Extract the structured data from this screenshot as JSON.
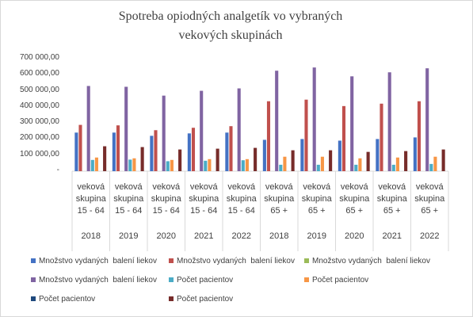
{
  "chart_data": {
    "type": "bar",
    "title": "Spotreba opiodných analgetík vo vybraných vekových skupinách",
    "category_groups": [
      "veková skupina 15 - 64",
      "veková skupina 15 - 64",
      "veková skupina 15 - 64",
      "veková skupina 15 - 64",
      "veková skupina 15 - 64",
      "veková skupina 65 +",
      "veková skupina 65 +",
      "veková skupina 65 +",
      "veková skupina 65 +",
      "veková skupina 65 +"
    ],
    "categories": [
      "2018",
      "2019",
      "2020",
      "2021",
      "2022",
      "2018",
      "2019",
      "2020",
      "2021",
      "2022"
    ],
    "series": [
      {
        "name": "Množstvo vydaných  balení liekov",
        "color": "#4472c4",
        "values": [
          240000,
          240000,
          220000,
          235000,
          240000,
          195000,
          200000,
          190000,
          200000,
          210000
        ]
      },
      {
        "name": "Množstvo vydaných  balení liekov",
        "color": "#c0504d",
        "values": [
          288000,
          285000,
          255000,
          270000,
          280000,
          435000,
          445000,
          405000,
          420000,
          435000
        ]
      },
      {
        "name": "Množstvo vydaných  balení liekov",
        "color": "#9bbb59",
        "values": [
          null,
          null,
          null,
          null,
          null,
          null,
          null,
          null,
          null,
          null
        ]
      },
      {
        "name": "Množstvo vydaných  balení liekov",
        "color": "#8064a2",
        "values": [
          530000,
          525000,
          470000,
          500000,
          515000,
          625000,
          645000,
          590000,
          615000,
          640000
        ]
      },
      {
        "name": "Počet pacientov",
        "color": "#4bacc6",
        "values": [
          70000,
          72000,
          62000,
          65000,
          68000,
          40000,
          40000,
          40000,
          40000,
          45000
        ]
      },
      {
        "name": "Počet pacientov",
        "color": "#f79646",
        "values": [
          85000,
          80000,
          70000,
          75000,
          75000,
          90000,
          90000,
          80000,
          85000,
          90000
        ]
      },
      {
        "name": "Počet pacientov",
        "color": "#1f497d",
        "values": [
          null,
          null,
          null,
          null,
          null,
          null,
          null,
          null,
          null,
          null
        ]
      },
      {
        "name": "Počet pacientov",
        "color": "#772c2a",
        "values": [
          155000,
          150000,
          135000,
          140000,
          145000,
          130000,
          130000,
          120000,
          125000,
          135000
        ]
      }
    ],
    "ylim": [
      0,
      700000
    ],
    "yticks": [
      {
        "value": 0,
        "label": "-"
      },
      {
        "value": 100000,
        "label": "100 000,00"
      },
      {
        "value": 200000,
        "label": "200 000,00"
      },
      {
        "value": 300000,
        "label": "300 000,00"
      },
      {
        "value": 400000,
        "label": "400 000,00"
      },
      {
        "value": 500000,
        "label": "500 000,00"
      },
      {
        "value": 600000,
        "label": "600 000,00"
      },
      {
        "value": 700000,
        "label": "700 000,00"
      }
    ],
    "grid": false
  }
}
